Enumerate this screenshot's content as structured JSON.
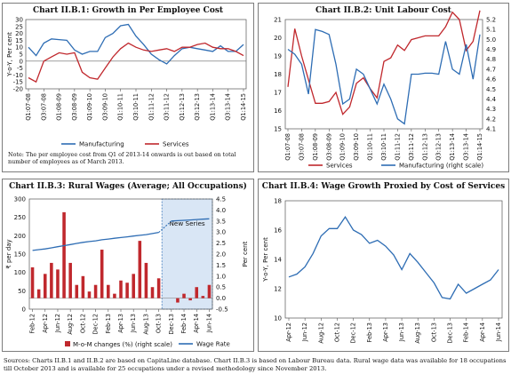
{
  "source_note": "Sources: Charts II.B.1 and II.B.2 are based on CapitaLine database. Chart II.B.3 is based on Labour Bureau data. Rural wage data was available for 18 occupations till October 2013 and is available for 25 occupations under a revised methodology since November 2013.",
  "chart_data": [
    {
      "id": "c1",
      "type": "line",
      "title": "Chart II.B.1: Growth in Per Employee Cost",
      "ylabel": "Y-o-Y, Per cent",
      "ylim": [
        -20,
        30
      ],
      "yticks": [
        -20,
        -15,
        -10,
        -5,
        0,
        5,
        10,
        15,
        20,
        25,
        30
      ],
      "categories": [
        "Q1:07-08",
        "Q2",
        "Q3",
        "Q4",
        "Q1:08-09",
        "Q2",
        "Q3",
        "Q4",
        "Q1:09-10",
        "Q2",
        "Q3",
        "Q4",
        "Q1:10-11",
        "Q2",
        "Q3",
        "Q4",
        "Q1:11-12",
        "Q2",
        "Q3",
        "Q4",
        "Q1:12-13",
        "Q2",
        "Q3",
        "Q4",
        "Q1:13-14",
        "Q2",
        "Q3",
        "Q4",
        "Q1:14-15"
      ],
      "xtick_labels": [
        "Q1:07-08",
        "Q3:07-08",
        "Q1:08-09",
        "Q3:08-09",
        "Q1:09-10",
        "Q3:09-10",
        "Q1:10-11",
        "Q3:10-11",
        "Q1:11-12",
        "Q3:11-12",
        "Q1:12-13",
        "Q3:12-13",
        "Q1:13-14",
        "Q3:13-14",
        "Q1:14-15"
      ],
      "series": [
        {
          "name": "Manufacturing",
          "color": "#2e6db4",
          "values": [
            10,
            4,
            13,
            16,
            15.5,
            15,
            8,
            5,
            7,
            7,
            17,
            20,
            25.5,
            26.5,
            18,
            12,
            5,
            1,
            -2,
            4,
            9,
            10,
            9,
            8,
            7,
            11,
            7,
            7,
            12
          ]
        },
        {
          "name": "Services",
          "color": "#c0282d",
          "values": [
            -12,
            -15,
            0,
            3,
            6,
            5,
            6,
            -8,
            -12,
            -13,
            -5,
            3,
            9,
            13,
            10,
            8,
            7,
            8,
            9,
            7,
            10,
            10,
            12,
            13,
            10,
            9,
            9,
            7,
            4
          ]
        }
      ],
      "legend": [
        "Manufacturing",
        "Services"
      ],
      "note": "Note: The per employee cost from Q1 of 2013-14 onwards is out based on total number of employees as of March 2013."
    },
    {
      "id": "c2",
      "type": "line",
      "title": "Chart II.B.2: Unit Labour Cost",
      "ylim": [
        15,
        21
      ],
      "yticks": [
        15,
        16,
        17,
        18,
        19,
        20,
        21
      ],
      "y2lim": [
        4.1,
        5.2
      ],
      "y2ticks": [
        4.1,
        4.2,
        4.3,
        4.4,
        4.5,
        4.6,
        4.7,
        4.8,
        4.9,
        5.0,
        5.1,
        5.2
      ],
      "categories": [
        "Q1:07-08",
        "Q2",
        "Q3",
        "Q4",
        "Q1:08-09",
        "Q2",
        "Q3",
        "Q4",
        "Q1:09-10",
        "Q2",
        "Q3",
        "Q4",
        "Q1:10-11",
        "Q2",
        "Q3",
        "Q4",
        "Q1:11-12",
        "Q2",
        "Q3",
        "Q4",
        "Q1:12-13",
        "Q2",
        "Q3",
        "Q4",
        "Q1:13-14",
        "Q2",
        "Q3",
        "Q4",
        "Q1:14-15"
      ],
      "xtick_labels": [
        "Q1:07-08",
        "Q3:07-08",
        "Q1:08-09",
        "Q3:08-09",
        "Q1:09-10",
        "Q3:09-10",
        "Q1:10-11",
        "Q3:10-11",
        "Q1:11-12",
        "Q3:11-12",
        "Q1:12-13",
        "Q3:12-13",
        "Q1:13-14",
        "Q3:13-14",
        "Q1:14-15"
      ],
      "series": [
        {
          "name": "Services",
          "axis": "left",
          "color": "#c0282d",
          "values": [
            17.3,
            20.5,
            19,
            17.7,
            16.4,
            16.4,
            16.5,
            17,
            15.8,
            16.2,
            17.5,
            17.8,
            17.2,
            16.7,
            18.7,
            18.9,
            19.6,
            19.3,
            19.9,
            20,
            20.1,
            20.1,
            20.1,
            20.6,
            21.4,
            21,
            19.3,
            19.8,
            21.5
          ]
        },
        {
          "name": "Manufacturing (right scale)",
          "axis": "right",
          "color": "#2e6db4",
          "values": [
            4.9,
            4.85,
            4.75,
            4.45,
            5.1,
            5.08,
            5.05,
            4.75,
            4.35,
            4.4,
            4.7,
            4.65,
            4.5,
            4.35,
            4.55,
            4.4,
            4.2,
            4.15,
            4.65,
            4.65,
            4.66,
            4.66,
            4.65,
            4.98,
            4.7,
            4.65,
            4.95,
            4.6,
            5.05
          ]
        }
      ],
      "legend": [
        "Services",
        "Manufacturing (right scale)"
      ]
    },
    {
      "id": "c3",
      "type": "bar",
      "title": "Chart II.B.3: Rural Wages (Average; All Occupations)",
      "ylabel": "₹ per day",
      "y2label": "Per cent",
      "ylim": [
        0,
        300
      ],
      "yticks": [
        0,
        50,
        100,
        150,
        200,
        250,
        300
      ],
      "y2lim": [
        -0.5,
        4.5
      ],
      "y2ticks": [
        -0.5,
        0.0,
        0.5,
        1.0,
        1.5,
        2.0,
        2.5,
        3.0,
        3.5,
        4.0,
        4.5
      ],
      "categories": [
        "Feb-12",
        "Mar-12",
        "Apr-12",
        "May-12",
        "Jun-12",
        "Jul-12",
        "Aug-12",
        "Sep-12",
        "Oct-12",
        "Nov-12",
        "Dec-12",
        "Jan-13",
        "Feb-13",
        "Mar-13",
        "Apr-13",
        "May-13",
        "Jun-13",
        "Jul-13",
        "Aug-13",
        "Sep-13",
        "Oct-13",
        "Nov-13",
        "Dec-13",
        "Jan-14",
        "Feb-14",
        "Mar-14",
        "Apr-14",
        "May-14",
        "Jun-14"
      ],
      "xtick_labels": [
        "Feb-12",
        "Apr-12",
        "Jun-12",
        "Aug-12",
        "Oct-12",
        "Dec-12",
        "Feb-13",
        "Apr-13",
        "Jun-13",
        "Aug-13",
        "Oct-13",
        "Dec-13",
        "Feb-14",
        "Apr-14",
        "Jun-14"
      ],
      "series": [
        {
          "name": "M-o-M changes (%) (right scale)",
          "axis": "right",
          "color": "#c0282d",
          "values": [
            1.4,
            0.4,
            1.1,
            1.6,
            1.3,
            3.9,
            1.6,
            0.6,
            1.0,
            0.3,
            0.6,
            2.2,
            0.6,
            0.2,
            0.8,
            0.7,
            1.1,
            2.6,
            1.6,
            0.5,
            0.9,
            null,
            null,
            -0.2,
            0.2,
            -0.1,
            0.5,
            0.1,
            0.6
          ]
        },
        {
          "name": "Wage Rate",
          "axis": "left",
          "color": "#2e6db4",
          "values": [
            160,
            162,
            164,
            167,
            170,
            173,
            176,
            179,
            182,
            184,
            186,
            189,
            191,
            193,
            195,
            197,
            199,
            201,
            203,
            206,
            209,
            null,
            240,
            241,
            242,
            243,
            244,
            245,
            246
          ]
        }
      ],
      "annotation": "New Series",
      "legend": [
        "M-o-M changes (%) (right scale)",
        "Wage Rate"
      ]
    },
    {
      "id": "c4",
      "type": "line",
      "title": "Chart II.B.4: Wage Growth Proxied by Cost of Services",
      "ylabel": "Y-o-Y, Per cent",
      "ylim": [
        10,
        18
      ],
      "yticks": [
        10,
        12,
        14,
        16,
        18
      ],
      "categories": [
        "Apr-12",
        "May-12",
        "Jun-12",
        "Jul-12",
        "Aug-12",
        "Sep-12",
        "Oct-12",
        "Nov-12",
        "Dec-12",
        "Jan-13",
        "Feb-13",
        "Mar-13",
        "Apr-13",
        "May-13",
        "Jun-13",
        "Jul-13",
        "Aug-13",
        "Sep-13",
        "Oct-13",
        "Nov-13",
        "Dec-13",
        "Jan-14",
        "Feb-14",
        "Mar-14",
        "Apr-14",
        "May-14",
        "Jun-14"
      ],
      "xtick_labels": [
        "Apr-12",
        "Jun-12",
        "Aug-12",
        "Oct-12",
        "Dec-12",
        "Feb-13",
        "Apr-13",
        "Jun-13",
        "Aug-13",
        "Oct-13",
        "Dec-13",
        "Feb-14",
        "Apr-14",
        "Jun-14"
      ],
      "series": [
        {
          "name": "Wage growth",
          "color": "#2e6db4",
          "values": [
            12.8,
            13.0,
            13.5,
            14.4,
            15.6,
            16.1,
            16.1,
            16.9,
            16.0,
            15.7,
            15.1,
            15.3,
            14.9,
            14.3,
            13.3,
            14.4,
            13.8,
            13.1,
            12.4,
            11.4,
            11.3,
            12.3,
            11.7,
            12.0,
            12.3,
            12.6,
            13.3
          ]
        }
      ]
    }
  ]
}
